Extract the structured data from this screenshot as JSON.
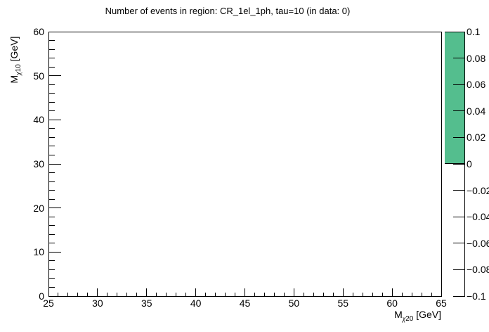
{
  "chart_data": {
    "type": "heatmap",
    "title": "Number of events in region: CR_1el_1ph, tau=10 (in data: 0)",
    "xlabel": {
      "main": "M",
      "sub_symbol": "χ",
      "sub_index": "20",
      "rest": " [GeV]"
    },
    "ylabel": {
      "main": "M",
      "sub_symbol": "χ",
      "sub_index": "10",
      "rest": " [GeV]"
    },
    "xlim": [
      25,
      65
    ],
    "ylim": [
      0,
      60
    ],
    "zlim": [
      -0.1,
      0.1
    ],
    "x_major_ticks": [
      25,
      30,
      35,
      40,
      45,
      50,
      55,
      60,
      65
    ],
    "x_major_tick_labels": [
      "25",
      "30",
      "35",
      "40",
      "45",
      "50",
      "55",
      "60",
      "65"
    ],
    "x_minor_step": 1,
    "y_major_ticks": [
      0,
      10,
      20,
      30,
      40,
      50,
      60
    ],
    "y_major_tick_labels": [
      "0",
      "10",
      "20",
      "30",
      "40",
      "50",
      "60"
    ],
    "y_minor_step": 2,
    "bins": [],
    "grid": false,
    "legend": null,
    "colorbar": {
      "tick_values": [
        0.1,
        0.08,
        0.06,
        0.04,
        0.02,
        0,
        -0.02,
        -0.04,
        -0.06,
        -0.08,
        -0.1
      ],
      "tick_labels": [
        "0.1",
        "0.08",
        "0.06",
        "0.04",
        "0.02",
        "0",
        "−0.02",
        "−0.04",
        "−0.06",
        "−0.08",
        "−0.1"
      ],
      "fill_color": "#54be8e",
      "filled_range": [
        0,
        0.1
      ]
    }
  }
}
